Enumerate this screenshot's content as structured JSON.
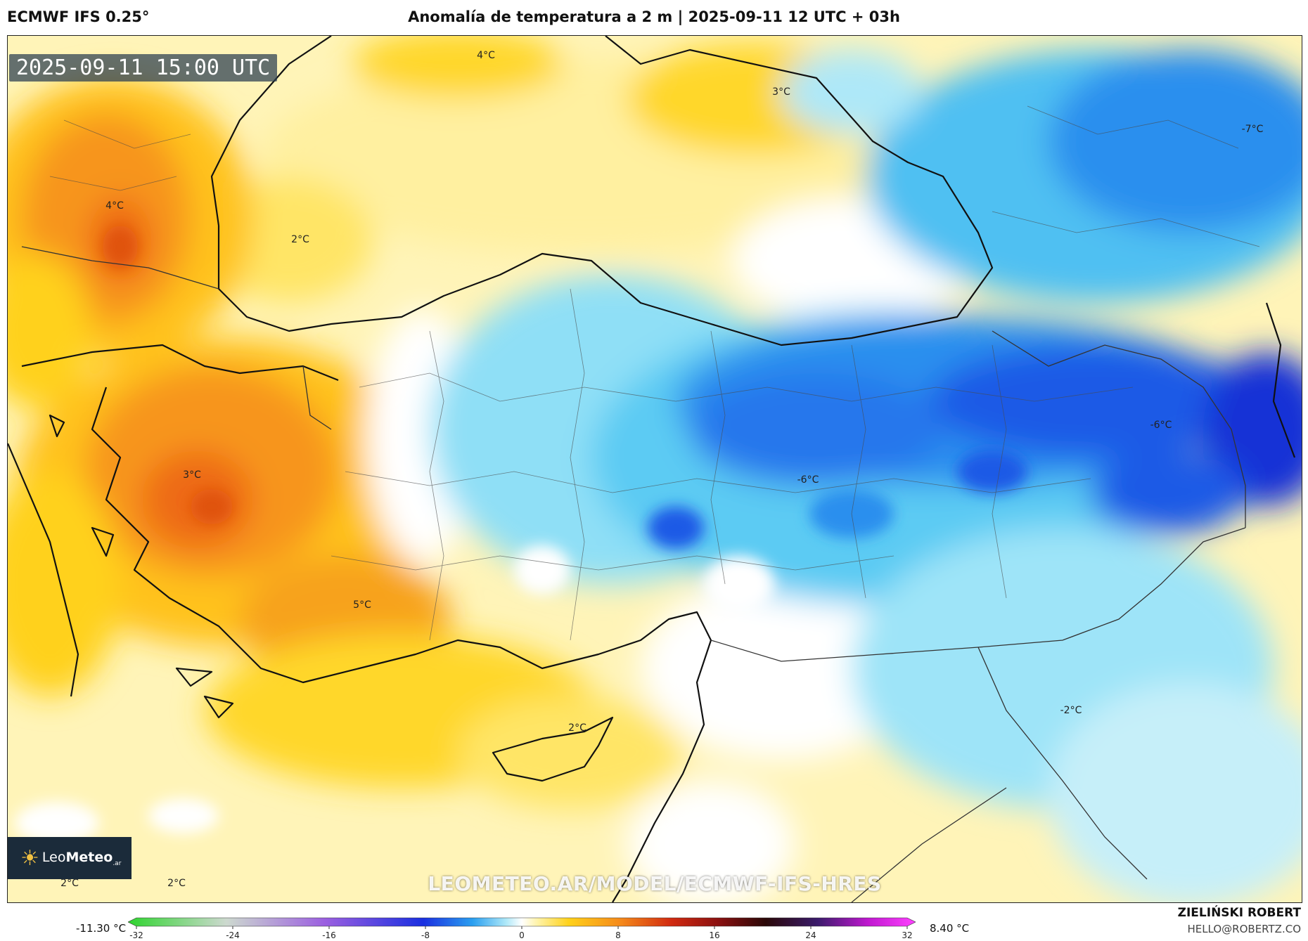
{
  "header": {
    "model": "ECMWF IFS 0.25°",
    "title": "Anomalía de temperatura a 2 m | 2025-09-11 12 UTC + 03h"
  },
  "map": {
    "timestamp": "2025-09-11 15:00 UTC",
    "contour_labels": [
      {
        "text": "4°C"
      },
      {
        "text": "3°C"
      },
      {
        "text": "-7°C"
      },
      {
        "text": "4°C"
      },
      {
        "text": "2°C"
      },
      {
        "text": "3°C"
      },
      {
        "text": "-6°C"
      },
      {
        "text": "-6°C"
      },
      {
        "text": "5°C"
      },
      {
        "text": "2°C"
      },
      {
        "text": "-2°C"
      },
      {
        "text": "2°C"
      },
      {
        "text": "2°C"
      }
    ],
    "watermark": "LEOMETEO.AR/MODEL/ECMWF-IFS-HRES"
  },
  "logo": {
    "name": "LeoMeteo",
    "prefix": "Leo",
    "suffix": "Meteo",
    "tld": ".ar",
    "icon": "sun-icon"
  },
  "legend": {
    "min_label": "-11.30 °C",
    "max_label": "8.40 °C",
    "ticks": [
      "-32",
      "-24",
      "-16",
      "-8",
      "0",
      "8",
      "16",
      "24",
      "32"
    ],
    "range": [
      -32,
      32
    ],
    "colors": {
      "neg_32": "#2fd42f",
      "neg_24": "#cdd9cf",
      "neg_16": "#9b5fe0",
      "neg_8": "#1a2fe0",
      "neg_4": "#2a9ff0",
      "neg_1": "#aee8f8",
      "zero": "#ffffff",
      "pos_2": "#fff3a8",
      "pos_4": "#ffd11a",
      "pos_8": "#f58a1a",
      "pos_12": "#d12a10",
      "pos_16": "#8a1010",
      "pos_20": "#2a0808",
      "pos_24": "#3a1a6a",
      "pos_28": "#c018d0",
      "pos_32": "#ff40ff"
    }
  },
  "footer": {
    "author": "ZIELIŃSKI ROBERT",
    "email": "HELLO@ROBERTZ.CO"
  }
}
